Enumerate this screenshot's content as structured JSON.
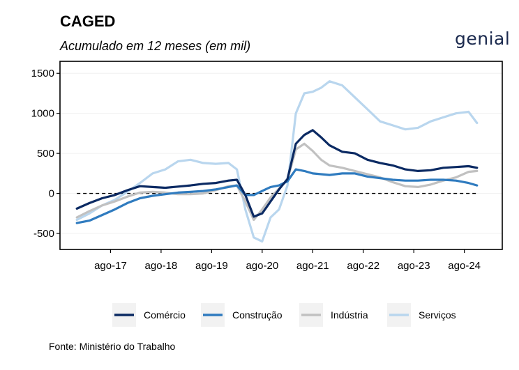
{
  "header": {
    "title": "CAGED",
    "subtitle": "Acumulado em 12 meses (em mil)",
    "logo_text": "genial"
  },
  "footer": {
    "source": "Fonte: Ministério do Trabalho"
  },
  "colors": {
    "comercio": "#0b2a63",
    "construcao": "#2f7bbf",
    "industria": "#c1c1c1",
    "servicos": "#b9d6ee"
  },
  "chart_data": {
    "type": "line",
    "title": "CAGED",
    "subtitle": "Acumulado em 12 meses (em mil)",
    "xlabel": "",
    "ylabel": "",
    "ylim": [
      -700,
      1650
    ],
    "y_ticks": [
      -500,
      0,
      500,
      1000,
      1500
    ],
    "y_tick_labels": [
      "-500",
      "0",
      "500",
      "1000",
      "1500"
    ],
    "x_ticks": [
      "2017-08",
      "2018-08",
      "2019-08",
      "2020-08",
      "2021-08",
      "2022-08",
      "2023-08",
      "2024-08"
    ],
    "x_tick_labels": [
      "ago-17",
      "ago-18",
      "ago-19",
      "ago-20",
      "ago-21",
      "ago-22",
      "ago-23",
      "ago-24"
    ],
    "xlim": [
      "2016-08",
      "2025-05"
    ],
    "reference_line": 0,
    "legend_position": "bottom",
    "x": [
      "2016-12",
      "2017-03",
      "2017-06",
      "2017-09",
      "2017-12",
      "2018-03",
      "2018-06",
      "2018-09",
      "2018-12",
      "2019-03",
      "2019-06",
      "2019-09",
      "2019-12",
      "2020-02",
      "2020-04",
      "2020-06",
      "2020-08",
      "2020-10",
      "2020-12",
      "2021-02",
      "2021-04",
      "2021-06",
      "2021-08",
      "2021-10",
      "2021-12",
      "2022-03",
      "2022-06",
      "2022-09",
      "2022-12",
      "2023-03",
      "2023-06",
      "2023-09",
      "2023-12",
      "2024-03",
      "2024-06",
      "2024-09",
      "2024-11"
    ],
    "series": [
      {
        "name": "Comércio",
        "color": "#0b2a63",
        "values": [
          -190,
          -120,
          -60,
          -20,
          40,
          90,
          80,
          70,
          85,
          100,
          120,
          130,
          160,
          170,
          -20,
          -290,
          -250,
          -100,
          50,
          180,
          620,
          730,
          790,
          700,
          600,
          520,
          500,
          420,
          380,
          350,
          300,
          280,
          290,
          320,
          330,
          340,
          320
        ]
      },
      {
        "name": "Construção",
        "color": "#2f7bbf",
        "values": [
          -370,
          -340,
          -270,
          -200,
          -120,
          -60,
          -30,
          -10,
          10,
          20,
          30,
          50,
          80,
          100,
          -20,
          -20,
          30,
          80,
          100,
          150,
          300,
          280,
          250,
          240,
          230,
          250,
          250,
          210,
          190,
          170,
          160,
          160,
          170,
          170,
          160,
          130,
          100
        ]
      },
      {
        "name": "Indústria",
        "color": "#c1c1c1",
        "values": [
          -300,
          -220,
          -150,
          -100,
          -40,
          10,
          20,
          10,
          -10,
          -10,
          0,
          40,
          90,
          100,
          -100,
          -330,
          -200,
          -50,
          60,
          170,
          550,
          620,
          530,
          420,
          350,
          320,
          280,
          240,
          200,
          140,
          90,
          80,
          110,
          160,
          200,
          270,
          280
        ]
      },
      {
        "name": "Serviços",
        "color": "#b9d6ee",
        "values": [
          -330,
          -250,
          -150,
          -80,
          20,
          130,
          250,
          300,
          400,
          420,
          380,
          370,
          380,
          300,
          -200,
          -550,
          -600,
          -300,
          -200,
          100,
          1000,
          1250,
          1270,
          1320,
          1400,
          1350,
          1200,
          1050,
          900,
          850,
          800,
          820,
          900,
          950,
          1000,
          1020,
          880
        ]
      }
    ]
  }
}
